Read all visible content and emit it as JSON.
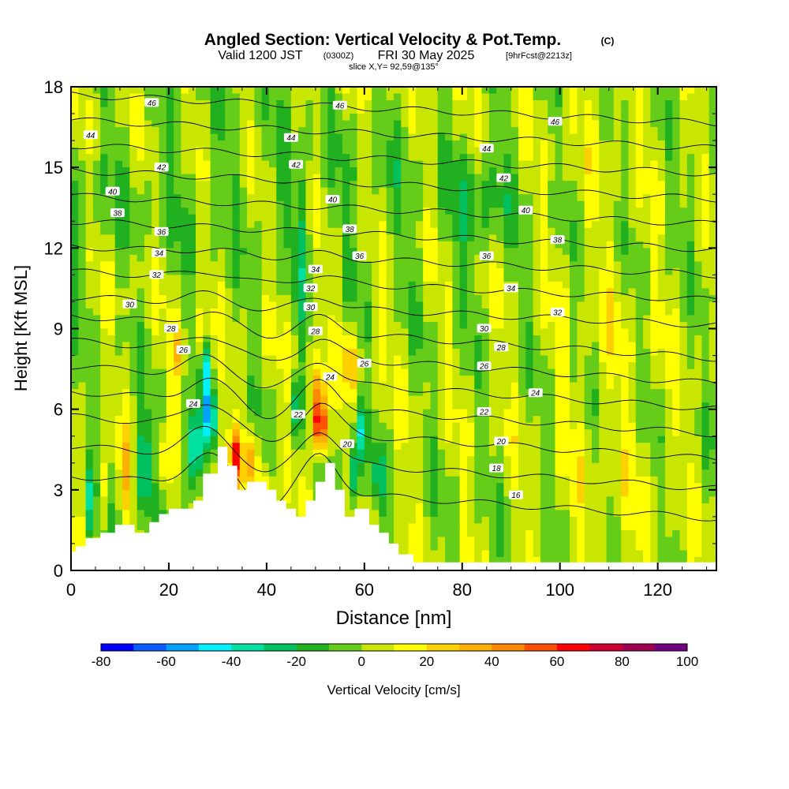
{
  "chart_data": {
    "type": "heatmap",
    "title": "Angled Section: Vertical Velocity & Pot.Temp.",
    "title_unit": "(C)",
    "subtitle_main": "Valid 1200 JST",
    "subtitle_utc": "(0300Z)",
    "subtitle_date": "FRI 30 May 2025",
    "subtitle_fcst": "[9hrFcst@2213z]",
    "slice_label": "slice X,Y= 92,59@135°",
    "xlabel": "Distance [nm]",
    "ylabel": "Height [Kft MSL]",
    "xlim": [
      0,
      132
    ],
    "ylim": [
      0,
      18
    ],
    "xticks": [
      0,
      20,
      40,
      60,
      80,
      100,
      120
    ],
    "yticks": [
      0,
      3,
      6,
      9,
      12,
      15,
      18
    ],
    "colorbar": {
      "label": "Vertical Velocity [cm/s]",
      "tick_labels": [
        -80,
        -60,
        -40,
        -20,
        0,
        20,
        40,
        60,
        80,
        100
      ],
      "levels": [
        -80,
        -70,
        -60,
        -50,
        -40,
        -30,
        -20,
        -10,
        0,
        10,
        20,
        30,
        40,
        50,
        60,
        70,
        80,
        90,
        100
      ],
      "colors": [
        "#0000ff",
        "#0a5cff",
        "#00a0ff",
        "#00f0ff",
        "#00e0a0",
        "#00c060",
        "#20b020",
        "#66cc1a",
        "#c8e600",
        "#ffff00",
        "#ffd000",
        "#ffb000",
        "#ff8800",
        "#ff5000",
        "#ff0000",
        "#cc0030",
        "#a00050",
        "#700080"
      ]
    },
    "terrain_profile": {
      "x": [
        0,
        1,
        1,
        3,
        3,
        6,
        6,
        9,
        9,
        13,
        13,
        16,
        16,
        18,
        18,
        20,
        20,
        25,
        25,
        27,
        27,
        30,
        30,
        32,
        32,
        34,
        34,
        36,
        36,
        40,
        40,
        42,
        42,
        44,
        44,
        46,
        46,
        48,
        48,
        50,
        50,
        52,
        52,
        54,
        54,
        56,
        56,
        58,
        58,
        61,
        61,
        63,
        63,
        65,
        65,
        67,
        67,
        70,
        70,
        72,
        72,
        132
      ],
      "y": [
        0.7,
        0.7,
        0.9,
        0.9,
        1.2,
        1.2,
        1.4,
        1.4,
        1.7,
        1.7,
        1.4,
        1.4,
        1.8,
        1.8,
        2.1,
        2.1,
        2.3,
        2.3,
        2.6,
        2.6,
        3.6,
        3.6,
        4.6,
        4.6,
        3.9,
        3.9,
        3.0,
        3.0,
        3.3,
        3.3,
        3.0,
        3.0,
        2.6,
        2.6,
        2.3,
        2.3,
        2.0,
        2.0,
        2.6,
        2.6,
        3.3,
        3.3,
        4.0,
        4.0,
        3.0,
        3.0,
        2.0,
        2.0,
        2.3,
        2.3,
        1.7,
        1.7,
        1.4,
        1.4,
        1.0,
        1.0,
        0.6,
        0.6,
        0.3,
        0.3,
        0.3,
        0.3
      ]
    },
    "vertical_velocity_features": [
      {
        "x": 4,
        "y": 2.5,
        "sx": 0.8,
        "sy": 1.5,
        "value": -30
      },
      {
        "x": 7,
        "y": 3.0,
        "sx": 0.9,
        "sy": 1.4,
        "value": 18
      },
      {
        "x": 11,
        "y": 3.5,
        "sx": 1.0,
        "sy": 1.5,
        "value": 20
      },
      {
        "x": 15,
        "y": 3.8,
        "sx": 1.4,
        "sy": 1.8,
        "value": -40
      },
      {
        "x": 19,
        "y": 4.0,
        "sx": 1.0,
        "sy": 1.0,
        "value": 20
      },
      {
        "x": 24,
        "y": 3.6,
        "sx": 0.8,
        "sy": 1.6,
        "value": -45
      },
      {
        "x": 25.5,
        "y": 4.6,
        "sx": 0.9,
        "sy": 1.3,
        "value": -70
      },
      {
        "x": 28.5,
        "y": 5.6,
        "sx": 0.9,
        "sy": 0.9,
        "value": -70
      },
      {
        "x": 27.5,
        "y": 7.5,
        "sx": 0.9,
        "sy": 1.4,
        "value": -40
      },
      {
        "x": 22,
        "y": 8.0,
        "sx": 1.5,
        "sy": 1.0,
        "value": 25
      },
      {
        "x": 27,
        "y": 8.8,
        "sx": 1.3,
        "sy": 0.8,
        "value": 25
      },
      {
        "x": 33.5,
        "y": 4.3,
        "sx": 1.2,
        "sy": 1.0,
        "value": 55
      },
      {
        "x": 37,
        "y": 4.2,
        "sx": 1.2,
        "sy": 1.0,
        "value": 40
      },
      {
        "x": 40.5,
        "y": 2.8,
        "sx": 1.0,
        "sy": 0.8,
        "value": 35
      },
      {
        "x": 51,
        "y": 5.3,
        "sx": 1.1,
        "sy": 1.0,
        "value": 85
      },
      {
        "x": 50.5,
        "y": 6.5,
        "sx": 1.5,
        "sy": 1.3,
        "value": 40
      },
      {
        "x": 57,
        "y": 7.8,
        "sx": 1.6,
        "sy": 1.2,
        "value": 25
      },
      {
        "x": 58,
        "y": 3.5,
        "sx": 0.9,
        "sy": 1.3,
        "value": -45
      },
      {
        "x": 59,
        "y": 5.2,
        "sx": 0.9,
        "sy": 1.2,
        "value": -40
      },
      {
        "x": 46,
        "y": 6.0,
        "sx": 1.2,
        "sy": 1.0,
        "value": -30
      },
      {
        "x": 63,
        "y": 3.5,
        "sx": 1.0,
        "sy": 1.0,
        "value": -30
      },
      {
        "x": 30,
        "y": 13.0,
        "sx": 0.8,
        "sy": 4.0,
        "value": 0
      },
      {
        "x": 47,
        "y": 12.0,
        "sx": 1.2,
        "sy": 4.0,
        "value": -15
      },
      {
        "x": 83,
        "y": 13.5,
        "sx": 6.0,
        "sy": 2.2,
        "value": -15
      },
      {
        "x": 13,
        "y": 11.0,
        "sx": 3.0,
        "sy": 1.2,
        "value": 5
      }
    ],
    "theta_contours": {
      "levels": [
        16,
        18,
        20,
        22,
        24,
        26,
        28,
        30,
        32,
        34,
        36,
        38,
        40,
        42,
        44,
        46
      ],
      "labels": [
        {
          "text": "46",
          "x": 16.5,
          "y": 17.4
        },
        {
          "text": "46",
          "x": 55.0,
          "y": 17.3
        },
        {
          "text": "46",
          "x": 99.0,
          "y": 16.7
        },
        {
          "text": "44",
          "x": 4.0,
          "y": 16.2
        },
        {
          "text": "44",
          "x": 45.0,
          "y": 16.1
        },
        {
          "text": "44",
          "x": 85.0,
          "y": 15.7
        },
        {
          "text": "42",
          "x": 18.5,
          "y": 15.0
        },
        {
          "text": "42",
          "x": 46.0,
          "y": 15.1
        },
        {
          "text": "42",
          "x": 88.5,
          "y": 14.6
        },
        {
          "text": "40",
          "x": 8.5,
          "y": 14.1
        },
        {
          "text": "40",
          "x": 53.5,
          "y": 13.8
        },
        {
          "text": "40",
          "x": 93.0,
          "y": 13.4
        },
        {
          "text": "38",
          "x": 9.5,
          "y": 13.3
        },
        {
          "text": "38",
          "x": 57.0,
          "y": 12.7
        },
        {
          "text": "38",
          "x": 99.5,
          "y": 12.3
        },
        {
          "text": "36",
          "x": 18.5,
          "y": 12.6
        },
        {
          "text": "36",
          "x": 59.0,
          "y": 11.7
        },
        {
          "text": "36",
          "x": 85.0,
          "y": 11.7
        },
        {
          "text": "34",
          "x": 18.0,
          "y": 11.8
        },
        {
          "text": "34",
          "x": 50.0,
          "y": 11.2
        },
        {
          "text": "34",
          "x": 90.0,
          "y": 10.5
        },
        {
          "text": "32",
          "x": 17.5,
          "y": 11.0
        },
        {
          "text": "32",
          "x": 49.0,
          "y": 10.5
        },
        {
          "text": "32",
          "x": 99.5,
          "y": 9.6
        },
        {
          "text": "30",
          "x": 12.0,
          "y": 9.9
        },
        {
          "text": "30",
          "x": 49.0,
          "y": 9.8
        },
        {
          "text": "30",
          "x": 84.5,
          "y": 9.0
        },
        {
          "text": "28",
          "x": 20.5,
          "y": 9.0
        },
        {
          "text": "28",
          "x": 50.0,
          "y": 8.9
        },
        {
          "text": "28",
          "x": 88.0,
          "y": 8.3
        },
        {
          "text": "26",
          "x": 23.0,
          "y": 8.2
        },
        {
          "text": "26",
          "x": 60.0,
          "y": 7.7
        },
        {
          "text": "26",
          "x": 84.5,
          "y": 7.6
        },
        {
          "text": "24",
          "x": 25.0,
          "y": 6.2
        },
        {
          "text": "24",
          "x": 53.0,
          "y": 7.2
        },
        {
          "text": "24",
          "x": 95.0,
          "y": 6.6
        },
        {
          "text": "22",
          "x": 46.5,
          "y": 5.8
        },
        {
          "text": "22",
          "x": 84.5,
          "y": 5.9
        },
        {
          "text": "20",
          "x": 56.5,
          "y": 4.7
        },
        {
          "text": "20",
          "x": 88.0,
          "y": 4.8
        },
        {
          "text": "18",
          "x": 87.0,
          "y": 3.8
        },
        {
          "text": "16",
          "x": 91.0,
          "y": 2.8
        }
      ]
    }
  }
}
